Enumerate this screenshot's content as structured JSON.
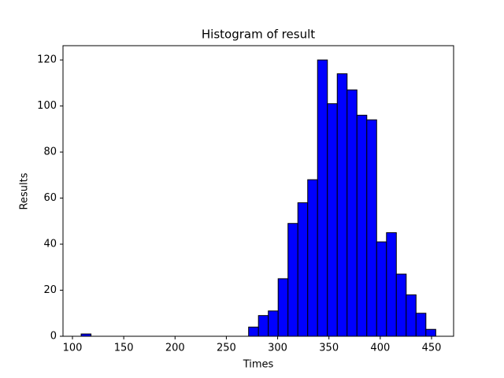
{
  "chart_data": {
    "type": "histogram",
    "title": "Histogram of result",
    "x_label": "Times",
    "y_label": "Results",
    "bins": [
      108.5,
      118.1,
      127.7,
      137.3,
      146.9,
      156.5,
      166.1,
      175.7,
      185.3,
      194.9,
      204.5,
      214.1,
      223.7,
      233.3,
      242.9,
      252.5,
      262.1,
      271.7,
      281.3,
      290.9,
      300.5,
      310.1,
      319.7,
      329.3,
      338.9,
      348.5,
      358.1,
      367.7,
      377.3,
      386.9,
      396.5,
      406.1,
      415.7,
      425.3,
      434.9,
      444.5,
      454.1
    ],
    "values": [
      1,
      0,
      0,
      0,
      0,
      0,
      0,
      0,
      0,
      0,
      0,
      0,
      0,
      0,
      0,
      0,
      0,
      4,
      9,
      11,
      25,
      49,
      58,
      68,
      120,
      101,
      114,
      107,
      96,
      94,
      41,
      45,
      27,
      18,
      10,
      3
    ],
    "color": "#0000ff",
    "edgecolor": "#000000",
    "xlim": [
      90.8,
      471.5
    ],
    "xticks": [
      100,
      150,
      200,
      250,
      300,
      350,
      400,
      450
    ],
    "ylim": [
      0,
      126.2
    ],
    "yticks": [
      0,
      20,
      40,
      60,
      80,
      100,
      120
    ]
  }
}
